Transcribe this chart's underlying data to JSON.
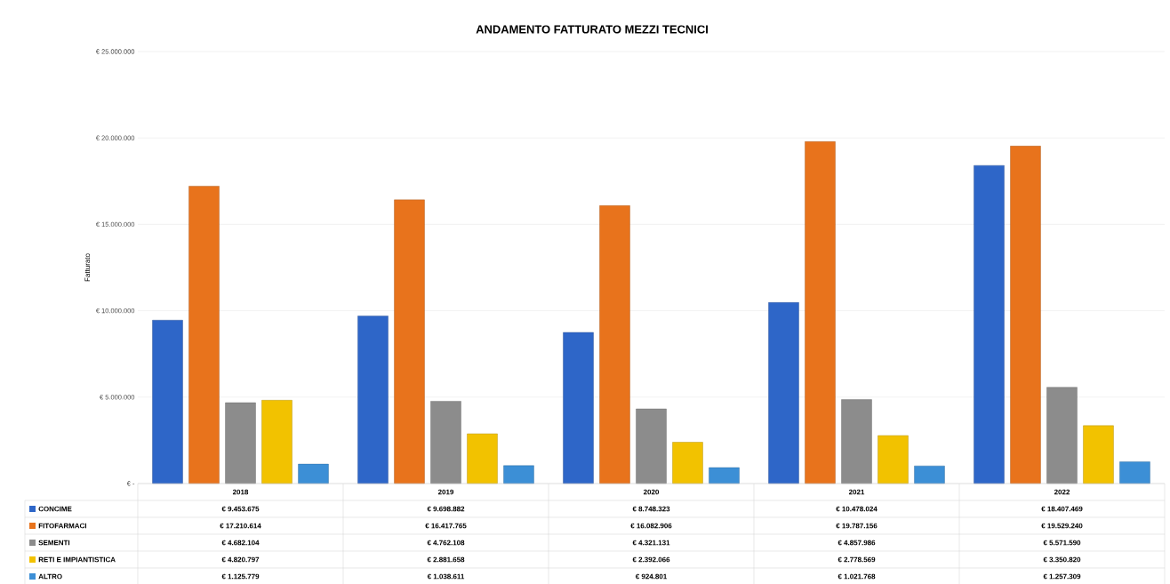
{
  "chart_data": {
    "type": "bar",
    "title": "ANDAMENTO FATTURATO MEZZI TECNICI",
    "ylabel": "Fatturato",
    "categories": [
      "2018",
      "2019",
      "2020",
      "2021",
      "2022"
    ],
    "series": [
      {
        "name": "CONCIME",
        "color": "#2e66c8",
        "values": [
          9453675,
          9698882,
          8748323,
          10478024,
          18407469
        ],
        "value_labels": [
          "€ 9.453.675",
          "€ 9.698.882",
          "€ 8.748.323",
          "€ 10.478.024",
          "€ 18.407.469"
        ]
      },
      {
        "name": "FITOFARMACI",
        "color": "#e8731c",
        "values": [
          17210614,
          16417765,
          16082906,
          19787156,
          19529240
        ],
        "value_labels": [
          "€ 17.210.614",
          "€ 16.417.765",
          "€ 16.082.906",
          "€ 19.787.156",
          "€ 19.529.240"
        ]
      },
      {
        "name": "SEMENTI",
        "color": "#8c8c8c",
        "values": [
          4682104,
          4762108,
          4321131,
          4857986,
          5571590
        ],
        "value_labels": [
          "€ 4.682.104",
          "€ 4.762.108",
          "€ 4.321.131",
          "€ 4.857.986",
          "€ 5.571.590"
        ]
      },
      {
        "name": "RETI E IMPIANTISTICA",
        "color": "#f2c200",
        "values": [
          4820797,
          2881658,
          2392066,
          2778569,
          3350820
        ],
        "value_labels": [
          "€ 4.820.797",
          "€ 2.881.658",
          "€ 2.392.066",
          "€ 2.778.569",
          "€ 3.350.820"
        ]
      },
      {
        "name": "ALTRO",
        "color": "#3c8fd6",
        "values": [
          1125779,
          1038611,
          924801,
          1021768,
          1257309
        ],
        "value_labels": [
          "€ 1.125.779",
          "€ 1.038.611",
          "€ 924.801",
          "€ 1.021.768",
          "€ 1.257.309"
        ]
      }
    ],
    "ylim": [
      0,
      25000000
    ],
    "yticks": [
      {
        "value": 0,
        "label": "€ -"
      },
      {
        "value": 5000000,
        "label": "€ 5.000.000"
      },
      {
        "value": 10000000,
        "label": "€ 10.000.000"
      },
      {
        "value": 15000000,
        "label": "€ 15.000.000"
      },
      {
        "value": 20000000,
        "label": "€ 20.000.000"
      },
      {
        "value": 25000000,
        "label": "€ 25.000.000"
      }
    ],
    "grid": "y",
    "legend": "bottom"
  }
}
